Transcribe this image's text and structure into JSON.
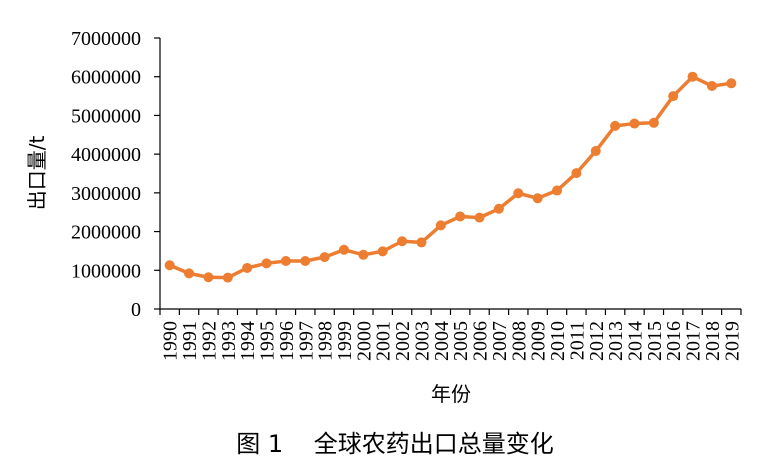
{
  "caption": "图 1    全球农药出口总量变化",
  "chart_data": {
    "type": "line",
    "title": "",
    "xlabel": "年份",
    "ylabel": "出口量/t",
    "ylim": [
      0,
      7000000
    ],
    "yticks": [
      "0",
      "1000000",
      "2000000",
      "3000000",
      "4000000",
      "5000000",
      "6000000",
      "7000000"
    ],
    "x": [
      "1990",
      "1991",
      "1992",
      "1993",
      "1994",
      "1995",
      "1996",
      "1997",
      "1998",
      "1999",
      "2000",
      "2001",
      "2002",
      "2003",
      "2004",
      "2005",
      "2006",
      "2007",
      "2008",
      "2009",
      "2010",
      "2011",
      "2012",
      "2013",
      "2014",
      "2015",
      "2016",
      "2017",
      "2018",
      "2019"
    ],
    "series": [
      {
        "values": [
          1130000,
          920000,
          820000,
          810000,
          1060000,
          1180000,
          1240000,
          1240000,
          1340000,
          1530000,
          1400000,
          1490000,
          1750000,
          1720000,
          2160000,
          2390000,
          2360000,
          2590000,
          2990000,
          2860000,
          3060000,
          3510000,
          4080000,
          4730000,
          4790000,
          4810000,
          5500000,
          6000000,
          5760000,
          5830000
        ]
      }
    ],
    "colors": {
      "line": "#ED7D31",
      "axis": "#000000"
    },
    "grid": false,
    "legend": "none"
  }
}
